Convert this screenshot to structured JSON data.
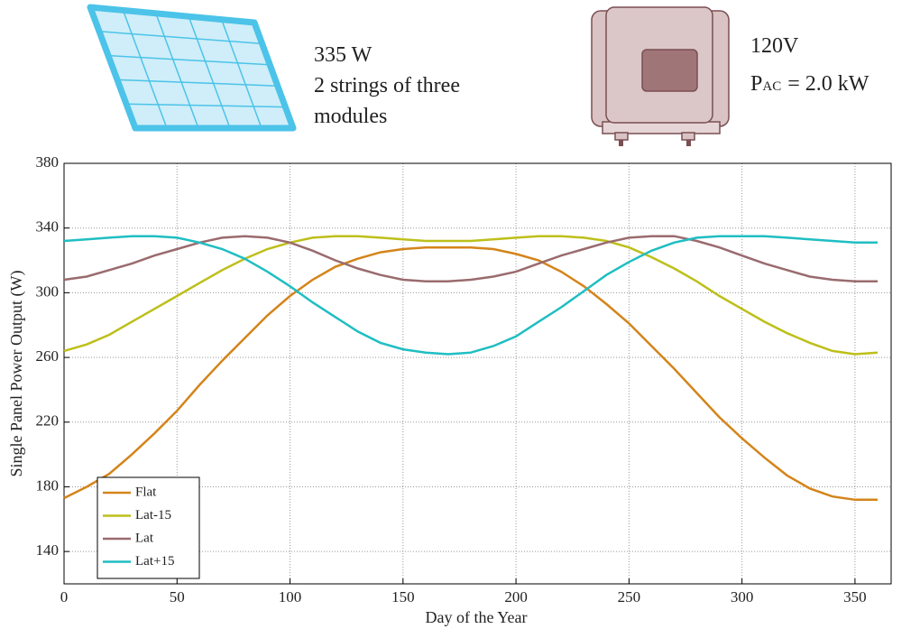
{
  "chart_data": {
    "type": "line",
    "x_label": "Day of the Year",
    "y_label": "Single Panel Power Output (W)",
    "x": [
      0,
      10,
      20,
      30,
      40,
      50,
      60,
      70,
      80,
      90,
      100,
      110,
      120,
      130,
      140,
      150,
      160,
      170,
      180,
      190,
      200,
      210,
      220,
      230,
      240,
      250,
      260,
      270,
      280,
      290,
      300,
      310,
      320,
      330,
      340,
      350,
      360
    ],
    "series": [
      {
        "name": "Flat",
        "color": "#d4841a",
        "values": [
          173,
          180,
          188,
          200,
          213,
          227,
          243,
          258,
          272,
          286,
          298,
          308,
          316,
          321,
          325,
          327,
          328,
          328,
          328,
          327,
          324,
          320,
          313,
          304,
          293,
          281,
          267,
          253,
          238,
          223,
          210,
          198,
          187,
          179,
          174,
          172,
          172
        ]
      },
      {
        "name": "Lat-15",
        "color": "#bdbf1a",
        "values": [
          264,
          268,
          274,
          282,
          290,
          298,
          306,
          314,
          321,
          327,
          331,
          334,
          335,
          335,
          334,
          333,
          332,
          332,
          332,
          333,
          334,
          335,
          335,
          334,
          332,
          328,
          322,
          315,
          307,
          298,
          290,
          282,
          275,
          269,
          264,
          262,
          263
        ]
      },
      {
        "name": "Lat",
        "color": "#9a6b6e",
        "values": [
          308,
          310,
          314,
          318,
          323,
          327,
          331,
          334,
          335,
          334,
          331,
          326,
          320,
          315,
          311,
          308,
          307,
          307,
          308,
          310,
          313,
          318,
          323,
          327,
          331,
          334,
          335,
          335,
          332,
          328,
          323,
          318,
          314,
          310,
          308,
          307,
          307
        ]
      },
      {
        "name": "Lat+15",
        "color": "#1fbec2",
        "values": [
          332,
          333,
          334,
          335,
          335,
          334,
          331,
          327,
          321,
          313,
          304,
          294,
          285,
          276,
          269,
          265,
          263,
          262,
          263,
          267,
          273,
          282,
          291,
          301,
          311,
          319,
          326,
          331,
          334,
          335,
          335,
          335,
          334,
          333,
          332,
          331,
          331
        ]
      }
    ],
    "xlim": [
      0,
      366
    ],
    "ylim": [
      120,
      380
    ],
    "xticks": [
      0,
      50,
      100,
      150,
      200,
      250,
      300,
      350
    ],
    "yticks": [
      140,
      180,
      220,
      260,
      300,
      340,
      380
    ],
    "grid": true,
    "legend": "lower left",
    "annotations": {
      "panel": [
        "335 W",
        "2 strings of three",
        "modules"
      ],
      "inverter": {
        "voltage": "120V",
        "symbol": "P",
        "subscript": "AC",
        "rest": "= 2.0 kW"
      }
    }
  }
}
